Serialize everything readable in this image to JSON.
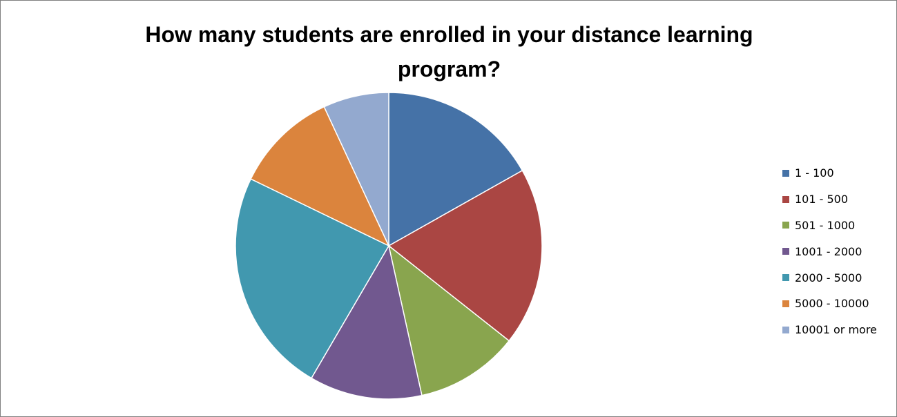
{
  "chart_data": {
    "type": "pie",
    "title_lines": [
      "How many students are enrolled in your distance learning",
      "program?"
    ],
    "categories": [
      "1 - 100",
      "101 - 500",
      "501 - 1000",
      "1001 - 2000",
      "2000 - 5000",
      "5000 - 10000",
      "10001 or more"
    ],
    "values": [
      17,
      19,
      11,
      12,
      24,
      11,
      7
    ],
    "colors": [
      "#4572a7",
      "#aa4643",
      "#89a54e",
      "#71588f",
      "#4198af",
      "#db843d",
      "#93a9cf"
    ],
    "legend_position": "right"
  }
}
